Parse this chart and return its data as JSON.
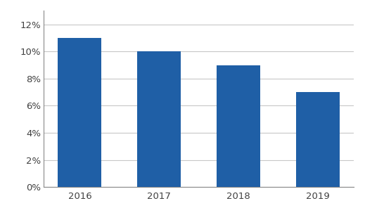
{
  "categories": [
    "2016",
    "2017",
    "2018",
    "2019"
  ],
  "values": [
    0.11,
    0.1,
    0.09,
    0.07
  ],
  "bar_color": "#1F5FA6",
  "ylim": [
    0,
    0.13
  ],
  "yticks": [
    0.0,
    0.02,
    0.04,
    0.06,
    0.08,
    0.1,
    0.12
  ],
  "background_color": "#ffffff",
  "grid_color": "#c8c8c8",
  "tick_label_color": "#404040",
  "bar_width": 0.55,
  "tick_fontsize": 9.5
}
